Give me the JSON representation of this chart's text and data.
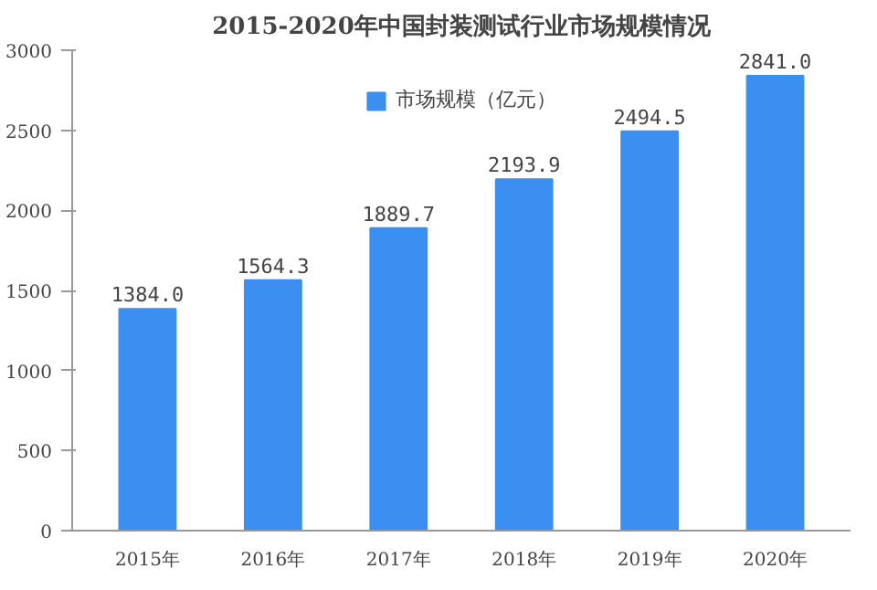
{
  "chart_data": {
    "type": "bar",
    "title": "2015-2020年中国封装测试行业市场规模情况",
    "categories": [
      "2015年",
      "2016年",
      "2017年",
      "2018年",
      "2019年",
      "2020年"
    ],
    "series": [
      {
        "name": "市场规模（亿元）",
        "color": "#3a8ff0",
        "values": [
          1384.0,
          1564.3,
          1889.7,
          2193.9,
          2494.5,
          2841.0
        ],
        "value_labels": [
          "1384.0",
          "1564.3",
          "1889.7",
          "2193.9",
          "2494.5",
          "2841.0"
        ]
      }
    ],
    "ylim": [
      0,
      3000
    ],
    "yticks": [
      0,
      500,
      1000,
      1500,
      2000,
      2500,
      3000
    ],
    "grid": false,
    "legend": "top"
  }
}
